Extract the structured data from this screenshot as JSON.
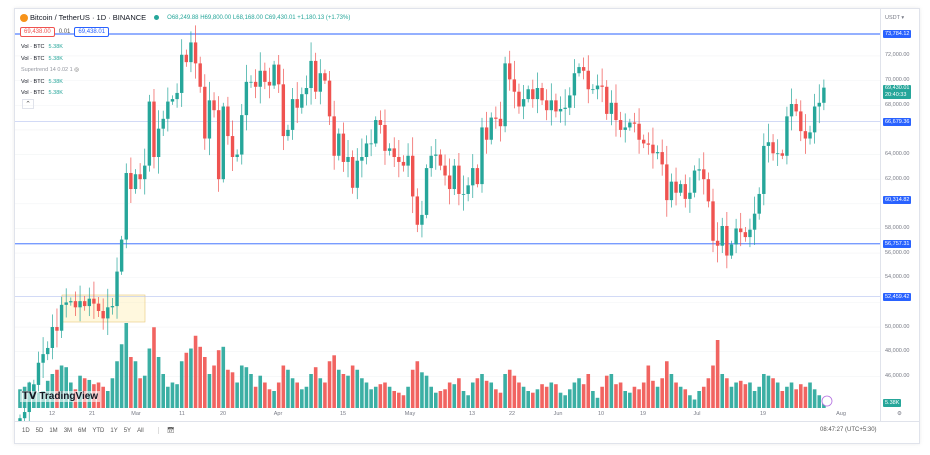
{
  "header": {
    "symbol": "Bitcoin / TetherUS · 1D · BINANCE",
    "open": "O68,249.88",
    "high": "H69,800.00",
    "low": "L68,168.00",
    "close": "C69,430.01",
    "change": "+1,180.13 (+1.73%)"
  },
  "price_boxes": {
    "sell": "69,438.00",
    "spread": "0.01",
    "buy": "69,438.01"
  },
  "legend": [
    {
      "name": "Vol · BTC",
      "value": "5.38K"
    },
    {
      "name": "Vol · BTC",
      "value": "5.38K"
    },
    {
      "name": "Supertrend 14 0.02 1",
      "value": ""
    },
    {
      "name": "Vol · BTC",
      "value": "5.38K"
    },
    {
      "name": "Vol · BTC",
      "value": "5.38K"
    }
  ],
  "axis": {
    "currency": "USDT",
    "ticks": [
      "72,000.00",
      "70,000.00",
      "68,000.00",
      "64,000.00",
      "62,000.00",
      "58,000.00",
      "56,000.00",
      "54,000.00",
      "50,000.00",
      "48,000.00",
      "46,000.00"
    ],
    "labels": [
      {
        "value": "73,784.12",
        "color": "#2962ff"
      },
      {
        "value": "66,679.36",
        "color": "#2962ff"
      },
      {
        "value": "60,314.82",
        "color": "#2962ff"
      },
      {
        "value": "56,757.31",
        "color": "#2962ff"
      },
      {
        "value": "52,459.42",
        "color": "#2962ff"
      }
    ],
    "last_price": "69,430.01",
    "countdown": "20:40:33",
    "volume_label": "5.38K"
  },
  "x_ticks": [
    "12",
    "21",
    "Mar",
    "11",
    "20",
    "Apr",
    "15",
    "May",
    "13",
    "22",
    "Jun",
    "10",
    "19",
    "Jul",
    "19",
    "Aug"
  ],
  "toolbar": {
    "ranges": [
      "1D",
      "5D",
      "1M",
      "3M",
      "6M",
      "YTD",
      "1Y",
      "5Y",
      "All"
    ],
    "clock": "08:47:27 (UTC+5:30)"
  },
  "watermark": "TradingView",
  "colors": {
    "up": "#26a69a",
    "down": "#ef5350",
    "line": "#2962ff"
  },
  "chart_data": {
    "type": "candlestick",
    "first_date": "Feb 5",
    "last_date": "Jul 28",
    "interval": "1D",
    "ylim": [
      45000,
      74500
    ],
    "horizontal_lines": [
      73784.12,
      66679.36,
      56757.31,
      52459.42
    ],
    "closes_k": [
      42.6,
      43.1,
      44.3,
      45.3,
      47.1,
      47.8,
      48.3,
      50.0,
      49.7,
      51.8,
      52.0,
      52.1,
      51.6,
      52.1,
      51.7,
      52.3,
      51.9,
      51.3,
      50.7,
      51.6,
      51.7,
      54.5,
      57.1,
      62.5,
      61.2,
      62.4,
      62.0,
      63.1,
      68.3,
      63.8,
      66.1,
      66.9,
      68.3,
      68.5,
      69.0,
      72.1,
      71.5,
      73.1,
      71.4,
      69.5,
      65.3,
      68.4,
      67.6,
      62.0,
      67.9,
      65.5,
      63.8,
      64.0,
      67.2,
      69.9,
      69.9,
      69.5,
      70.8,
      69.9,
      69.6,
      71.3,
      69.7,
      65.5,
      66.0,
      68.5,
      67.8,
      68.9,
      69.4,
      71.6,
      69.1,
      70.6,
      70.0,
      67.1,
      63.9,
      65.7,
      63.4,
      63.8,
      61.3,
      63.5,
      63.8,
      64.9,
      64.9,
      66.8,
      66.4,
      64.3,
      64.5,
      63.8,
      63.4,
      63.1,
      63.9,
      60.6,
      58.3,
      59.1,
      62.9,
      63.9,
      64.0,
      63.1,
      62.3,
      61.2,
      63.1,
      60.8,
      60.8,
      61.5,
      62.9,
      61.6,
      66.2,
      65.2,
      67.0,
      66.9,
      66.3,
      71.4,
      70.1,
      69.1,
      67.9,
      68.5,
      69.3,
      68.5,
      69.4,
      68.4,
      67.6,
      68.4,
      67.5,
      67.7,
      67.8,
      68.8,
      70.6,
      71.1,
      70.8,
      69.3,
      69.3,
      69.6,
      69.5,
      67.3,
      68.2,
      66.8,
      66.0,
      66.2,
      66.6,
      66.5,
      65.2,
      64.9,
      64.8,
      64.1,
      64.2,
      63.2,
      60.3,
      61.8,
      60.9,
      61.6,
      60.4,
      60.9,
      62.7,
      62.8,
      62.0,
      60.2,
      57.0,
      56.6,
      58.2,
      55.8,
      56.7,
      58.0,
      57.7,
      57.3,
      57.9,
      59.2,
      60.8,
      64.7,
      65.0,
      64.1,
      64.1,
      63.9,
      67.1,
      68.1,
      67.5,
      65.9,
      65.3,
      65.8,
      67.9,
      68.2,
      69.43
    ],
    "volumes_k": [
      22,
      25,
      30,
      28,
      18,
      20,
      32,
      40,
      45,
      50,
      48,
      30,
      22,
      38,
      35,
      33,
      28,
      30,
      25,
      20,
      35,
      55,
      75,
      100,
      60,
      55,
      35,
      38,
      70,
      95,
      60,
      40,
      25,
      30,
      28,
      55,
      65,
      70,
      85,
      72,
      60,
      40,
      50,
      68,
      72,
      45,
      42,
      30,
      50,
      48,
      40,
      25,
      38,
      30,
      22,
      20,
      30,
      50,
      45,
      35,
      30,
      22,
      25,
      40,
      48,
      35,
      30,
      55,
      62,
      45,
      40,
      38,
      50,
      45,
      35,
      30,
      22,
      25,
      28,
      30,
      25,
      20,
      18,
      15,
      25,
      45,
      55,
      42,
      38,
      25,
      18,
      20,
      22,
      30,
      28,
      35,
      20,
      15,
      30,
      35,
      40,
      32,
      30,
      22,
      18,
      40,
      45,
      38,
      30,
      25,
      20,
      18,
      22,
      28,
      25,
      30,
      28,
      18,
      15,
      22,
      30,
      35,
      28,
      40,
      20,
      12,
      25,
      38,
      40,
      28,
      30,
      20,
      18,
      25,
      22,
      30,
      50,
      32,
      25,
      35,
      55,
      40,
      30,
      25,
      22,
      15,
      10,
      20,
      25,
      35,
      50,
      80,
      40,
      35,
      25,
      30,
      32,
      28,
      30,
      20,
      25,
      40,
      38,
      35,
      30,
      20,
      25,
      30,
      22,
      28,
      25,
      30,
      22,
      15,
      5.38
    ]
  }
}
